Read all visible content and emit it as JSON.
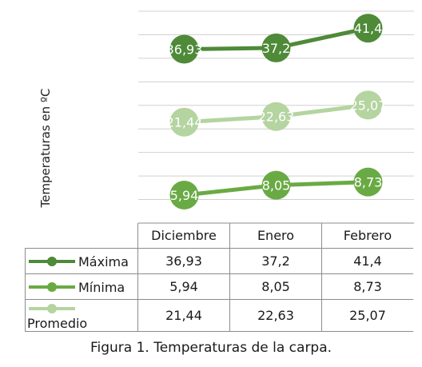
{
  "chart_data": {
    "type": "line",
    "categories": [
      "Diciembre",
      "Enero",
      "Febrero"
    ],
    "series": [
      {
        "name": "Máxima",
        "values": [
          36.93,
          37.2,
          41.4
        ],
        "labels": [
          "36,93",
          "37,2",
          "41,4"
        ],
        "color": "#4e8a38"
      },
      {
        "name": "Mínima",
        "values": [
          5.94,
          8.05,
          8.73
        ],
        "labels": [
          "5,94",
          "8,05",
          "8,73"
        ],
        "color": "#6aaa44"
      },
      {
        "name": "Promedio",
        "values": [
          21.44,
          22.63,
          25.07
        ],
        "labels": [
          "21,44",
          "22,63",
          "25,07"
        ],
        "color": "#b4d4a0"
      }
    ],
    "ylabel": "Temperaturas en ºC",
    "ylim": [
      0,
      45
    ],
    "grid": true,
    "legend": "data table"
  },
  "caption": "Figura 1. Temperaturas de la carpa."
}
